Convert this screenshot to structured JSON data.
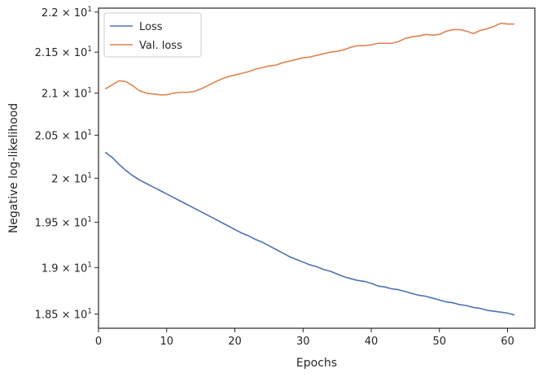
{
  "chart_data": {
    "type": "line",
    "xlabel": "Epochs",
    "ylabel": "Negative log-likelihood",
    "xlim": [
      0,
      64
    ],
    "ylim": [
      18.35,
      22.05
    ],
    "y_scale": "log",
    "grid": false,
    "legend_position": "top-left",
    "x_ticks": [
      0,
      10,
      20,
      30,
      40,
      50,
      60
    ],
    "x_tick_labels": [
      "0",
      "10",
      "20",
      "30",
      "40",
      "50",
      "60"
    ],
    "y_ticks": [
      {
        "value": 18.5,
        "base": "1.85 × 10",
        "exp": "1"
      },
      {
        "value": 19.0,
        "base": "1.9 × 10",
        "exp": "1"
      },
      {
        "value": 19.5,
        "base": "1.95 × 10",
        "exp": "1"
      },
      {
        "value": 20.0,
        "base": "2 × 10",
        "exp": "1"
      },
      {
        "value": 20.5,
        "base": "2.05 × 10",
        "exp": "1"
      },
      {
        "value": 21.0,
        "base": "2.1 × 10",
        "exp": "1"
      },
      {
        "value": 21.5,
        "base": "2.15 × 10",
        "exp": "1"
      },
      {
        "value": 22.0,
        "base": "2.2 × 10",
        "exp": "1"
      }
    ],
    "x": [
      1,
      2,
      3,
      4,
      5,
      6,
      7,
      8,
      9,
      10,
      11,
      12,
      13,
      14,
      15,
      16,
      17,
      18,
      19,
      20,
      21,
      22,
      23,
      24,
      25,
      26,
      27,
      28,
      29,
      30,
      31,
      32,
      33,
      34,
      35,
      36,
      37,
      38,
      39,
      40,
      41,
      42,
      43,
      44,
      45,
      46,
      47,
      48,
      49,
      50,
      51,
      52,
      53,
      54,
      55,
      56,
      57,
      58,
      59,
      60,
      61
    ],
    "series": [
      {
        "name": "Loss",
        "color": "#4c72b0",
        "values": [
          20.3,
          20.24,
          20.16,
          20.09,
          20.03,
          19.98,
          19.94,
          19.9,
          19.86,
          19.82,
          19.78,
          19.74,
          19.7,
          19.66,
          19.62,
          19.58,
          19.54,
          19.5,
          19.46,
          19.42,
          19.38,
          19.35,
          19.31,
          19.28,
          19.24,
          19.2,
          19.16,
          19.12,
          19.09,
          19.06,
          19.03,
          19.01,
          18.98,
          18.96,
          18.93,
          18.9,
          18.88,
          18.86,
          18.85,
          18.83,
          18.8,
          18.79,
          18.77,
          18.76,
          18.74,
          18.72,
          18.7,
          18.69,
          18.67,
          18.65,
          18.63,
          18.62,
          18.6,
          18.59,
          18.57,
          18.56,
          18.54,
          18.53,
          18.52,
          18.51,
          18.49
        ]
      },
      {
        "name": "Val. loss",
        "color": "#dd8452",
        "values": [
          21.05,
          21.1,
          21.15,
          21.14,
          21.09,
          21.03,
          21.0,
          20.99,
          20.98,
          20.98,
          21.0,
          21.01,
          21.01,
          21.02,
          21.05,
          21.09,
          21.13,
          21.17,
          21.2,
          21.22,
          21.24,
          21.26,
          21.29,
          21.31,
          21.33,
          21.34,
          21.37,
          21.39,
          21.41,
          21.43,
          21.44,
          21.46,
          21.48,
          21.5,
          21.51,
          21.53,
          21.56,
          21.58,
          21.58,
          21.59,
          21.61,
          21.61,
          21.61,
          21.63,
          21.67,
          21.69,
          21.7,
          21.72,
          21.71,
          21.72,
          21.76,
          21.78,
          21.78,
          21.76,
          21.73,
          21.77,
          21.79,
          21.82,
          21.86,
          21.85,
          21.85
        ]
      }
    ]
  }
}
